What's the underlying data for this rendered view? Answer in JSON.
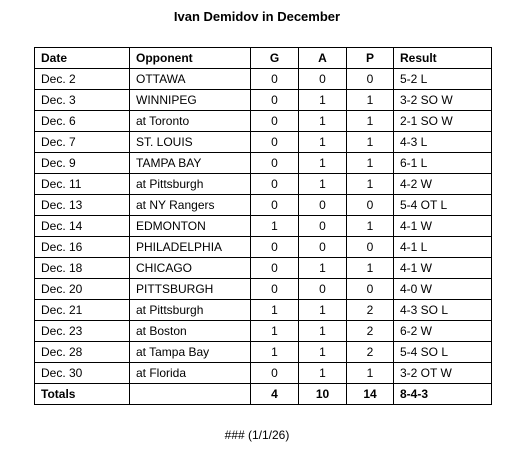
{
  "header": {
    "title": "Ivan Demidov in December"
  },
  "table": {
    "columns": [
      "Date",
      "Opponent",
      "G",
      "A",
      "P",
      "Result"
    ],
    "rows": [
      [
        "Dec. 2",
        "OTTAWA",
        0,
        0,
        0,
        "5-2 L"
      ],
      [
        "Dec. 3",
        "WINNIPEG",
        0,
        1,
        1,
        "3-2 SO W"
      ],
      [
        "Dec. 6",
        "at Toronto",
        0,
        1,
        1,
        "2-1 SO W"
      ],
      [
        "Dec. 7",
        "ST. LOUIS",
        0,
        1,
        1,
        "4-3 L"
      ],
      [
        "Dec. 9",
        "TAMPA BAY",
        0,
        1,
        1,
        "6-1 L"
      ],
      [
        "Dec. 11",
        "at Pittsburgh",
        0,
        1,
        1,
        "4-2 W"
      ],
      [
        "Dec. 13",
        "at NY Rangers",
        0,
        0,
        0,
        "5-4 OT L"
      ],
      [
        "Dec. 14",
        "EDMONTON",
        1,
        0,
        1,
        "4-1 W"
      ],
      [
        "Dec. 16",
        "PHILADELPHIA",
        0,
        0,
        0,
        "4-1 L"
      ],
      [
        "Dec. 18",
        "CHICAGO",
        0,
        1,
        1,
        "4-1 W"
      ],
      [
        "Dec. 20",
        "PITTSBURGH",
        0,
        0,
        0,
        "4-0 W"
      ],
      [
        "Dec. 21",
        "at Pittsburgh",
        1,
        1,
        2,
        "4-3 SO L"
      ],
      [
        "Dec. 23",
        "at Boston",
        1,
        1,
        2,
        "6-2 W"
      ],
      [
        "Dec. 28",
        "at Tampa Bay",
        1,
        1,
        2,
        "5-4 SO L"
      ],
      [
        "Dec. 30",
        "at Florida",
        0,
        1,
        1,
        "3-2 OT W"
      ]
    ],
    "totals": {
      "label": "Totals",
      "g": 4,
      "a": 10,
      "p": 14,
      "record": "8-4-3"
    }
  },
  "footer": {
    "note": "### (1/1/26)"
  }
}
